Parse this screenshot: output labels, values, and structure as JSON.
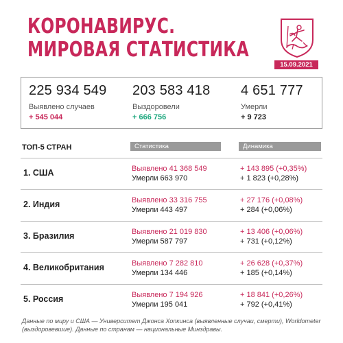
{
  "header": {
    "title_line1": "КОРОНАВИРУС.",
    "title_line2": "МИРОВАЯ СТАТИСТИКА",
    "date": "15.09.2021",
    "emblem_icon": "moscow-coat-of-arms-icon"
  },
  "totals": {
    "cases": {
      "value": "225 934 549",
      "label": "Выявлено случаев",
      "delta": "+ 545 044"
    },
    "recovered": {
      "value": "203 583 418",
      "label": "Выздоровели",
      "delta": "+ 666 756"
    },
    "deaths": {
      "value": "4 651 777",
      "label": "Умерли",
      "delta": "+ 9 723"
    }
  },
  "top5": {
    "heading": "ТОП-5 СТРАН",
    "col_stats": "Статистика",
    "col_dynamics": "Динамика",
    "countries": [
      {
        "name": "1. США",
        "cases": "Выявлено 41 368 549",
        "deaths": "Умерли 663 970",
        "cases_delta": "+ 143 895 (+0,35%)",
        "deaths_delta": "+ 1 823 (+0,28%)"
      },
      {
        "name": "2. Индия",
        "cases": "Выявлено 33 316 755",
        "deaths": "Умерли 443 497",
        "cases_delta": "+ 27 176 (+0,08%)",
        "deaths_delta": "+ 284 (+0,06%)"
      },
      {
        "name": "3. Бразилия",
        "cases": "Выявлено 21 019 830",
        "deaths": "Умерли 587 797",
        "cases_delta": "+ 13 406 (+0,06%)",
        "deaths_delta": "+ 731 (+0,12%)"
      },
      {
        "name": "4. Великобритания",
        "cases": "Выявлено 7 282 810",
        "deaths": "Умерли 134 446",
        "cases_delta": "+ 26 628 (+0,37%)",
        "deaths_delta": "+ 185 (+0,14%)"
      },
      {
        "name": "5. Россия",
        "cases": "Выявлено 7 194 926",
        "deaths": "Умерли 195 041",
        "cases_delta": "+ 18 841 (+0,26%)",
        "deaths_delta": "+ 792 (+0,41%)"
      }
    ]
  },
  "footer": "Данные по миру и США — Университет Джонса Хопкинса (выявленные случаи, смерти), Worldometer (выздоровевшие). Данные по странам — национальные Минздравы.",
  "colors": {
    "accent": "#c8285a",
    "positive": "#1ea77e",
    "header_gray": "#9a9a9a"
  }
}
